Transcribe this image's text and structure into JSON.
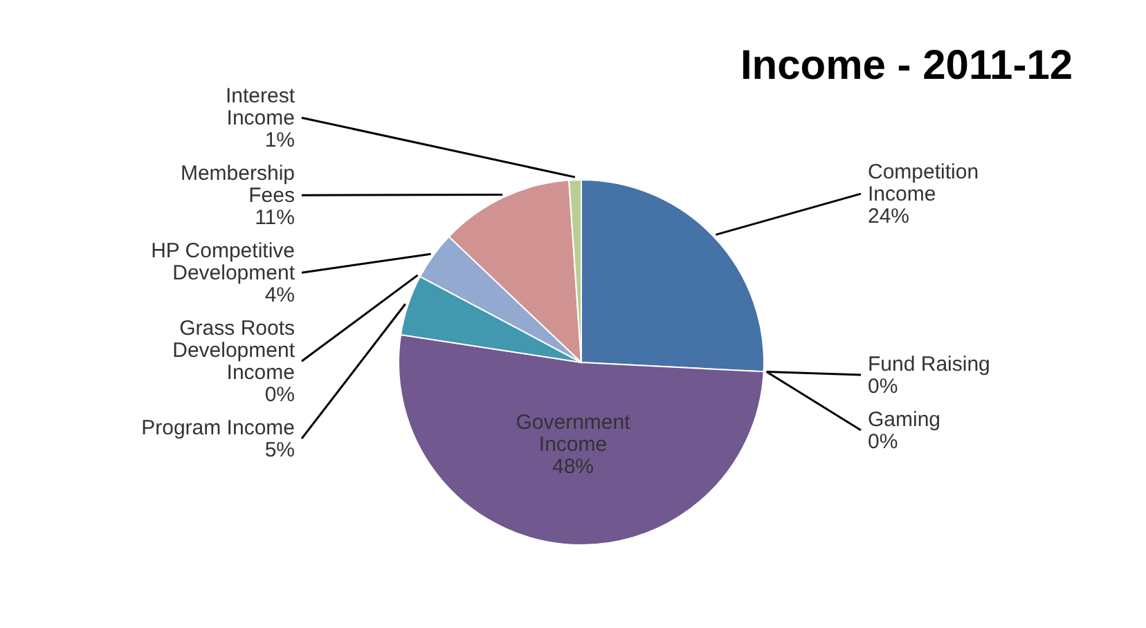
{
  "chart_data": {
    "type": "pie",
    "title": "Income - 2011-12",
    "categories": [
      "Competition Income",
      "Fund Raising",
      "Gaming",
      "Government Income",
      "Program Income",
      "Grass Roots Development Income",
      "HP Competitive Development",
      "Membership Fees",
      "Interest Income"
    ],
    "values": [
      24,
      0,
      0,
      48,
      5,
      0,
      4,
      11,
      1
    ],
    "value_labels": [
      "24%",
      "0%",
      "0%",
      "48%",
      "5%",
      "0%",
      "4%",
      "11%",
      "1%"
    ],
    "colors": [
      "#4572a7",
      "#aa4643",
      "#89a54e",
      "#71588f",
      "#4198af",
      "#db843d",
      "#93a9cf",
      "#d19392",
      "#b9cd96"
    ]
  }
}
